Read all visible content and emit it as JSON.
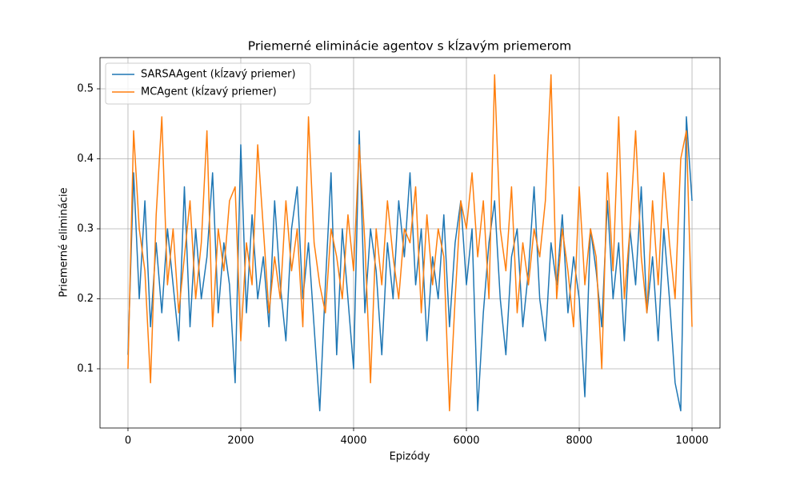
{
  "chart_data": {
    "type": "line",
    "title": "Priemerné eliminácie agentov s kĺzavým priemerom",
    "xlabel": "Epizódy",
    "ylabel": "Priemerné eliminácie",
    "x": [
      0,
      100,
      200,
      300,
      400,
      500,
      600,
      700,
      800,
      900,
      1000,
      1100,
      1200,
      1300,
      1400,
      1500,
      1600,
      1700,
      1800,
      1900,
      2000,
      2100,
      2200,
      2300,
      2400,
      2500,
      2600,
      2700,
      2800,
      2900,
      3000,
      3100,
      3200,
      3300,
      3400,
      3500,
      3600,
      3700,
      3800,
      3900,
      4000,
      4100,
      4200,
      4300,
      4400,
      4500,
      4600,
      4700,
      4800,
      4900,
      5000,
      5100,
      5200,
      5300,
      5400,
      5500,
      5600,
      5700,
      5800,
      5900,
      6000,
      6100,
      6200,
      6300,
      6400,
      6500,
      6600,
      6700,
      6800,
      6900,
      7000,
      7100,
      7200,
      7300,
      7400,
      7500,
      7600,
      7700,
      7800,
      7900,
      8000,
      8100,
      8200,
      8300,
      8400,
      8500,
      8600,
      8700,
      8800,
      8900,
      9000,
      9100,
      9200,
      9300,
      9400,
      9500,
      9600,
      9700,
      9800,
      9900,
      10000
    ],
    "series": [
      {
        "name": "SARSAAgent (kĺzavý priemer)",
        "color": "#1f77b4",
        "values": [
          0.12,
          0.38,
          0.2,
          0.34,
          0.16,
          0.28,
          0.18,
          0.3,
          0.22,
          0.14,
          0.36,
          0.16,
          0.3,
          0.2,
          0.26,
          0.38,
          0.18,
          0.28,
          0.22,
          0.08,
          0.42,
          0.18,
          0.32,
          0.2,
          0.26,
          0.16,
          0.34,
          0.22,
          0.14,
          0.3,
          0.36,
          0.2,
          0.28,
          0.16,
          0.04,
          0.22,
          0.38,
          0.12,
          0.3,
          0.2,
          0.1,
          0.44,
          0.18,
          0.3,
          0.24,
          0.12,
          0.28,
          0.2,
          0.34,
          0.26,
          0.38,
          0.22,
          0.3,
          0.14,
          0.26,
          0.2,
          0.32,
          0.16,
          0.28,
          0.34,
          0.22,
          0.3,
          0.04,
          0.18,
          0.28,
          0.34,
          0.2,
          0.12,
          0.26,
          0.3,
          0.16,
          0.24,
          0.36,
          0.2,
          0.14,
          0.28,
          0.22,
          0.32,
          0.18,
          0.26,
          0.2,
          0.06,
          0.3,
          0.24,
          0.16,
          0.34,
          0.2,
          0.28,
          0.14,
          0.3,
          0.22,
          0.36,
          0.18,
          0.26,
          0.14,
          0.3,
          0.2,
          0.08,
          0.04,
          0.46,
          0.34
        ]
      },
      {
        "name": "MCAgent (kĺzavý priemer)",
        "color": "#ff7f0e",
        "values": [
          0.1,
          0.44,
          0.3,
          0.24,
          0.08,
          0.32,
          0.46,
          0.22,
          0.3,
          0.18,
          0.26,
          0.34,
          0.2,
          0.28,
          0.44,
          0.16,
          0.3,
          0.24,
          0.34,
          0.36,
          0.14,
          0.28,
          0.22,
          0.42,
          0.3,
          0.18,
          0.26,
          0.2,
          0.34,
          0.24,
          0.3,
          0.16,
          0.46,
          0.28,
          0.22,
          0.18,
          0.3,
          0.26,
          0.2,
          0.32,
          0.24,
          0.42,
          0.28,
          0.08,
          0.3,
          0.22,
          0.34,
          0.26,
          0.2,
          0.3,
          0.28,
          0.36,
          0.18,
          0.32,
          0.22,
          0.3,
          0.26,
          0.04,
          0.2,
          0.34,
          0.3,
          0.38,
          0.26,
          0.34,
          0.2,
          0.52,
          0.3,
          0.24,
          0.36,
          0.18,
          0.28,
          0.22,
          0.3,
          0.26,
          0.34,
          0.52,
          0.2,
          0.3,
          0.24,
          0.16,
          0.36,
          0.22,
          0.3,
          0.26,
          0.1,
          0.38,
          0.24,
          0.46,
          0.2,
          0.3,
          0.44,
          0.26,
          0.18,
          0.34,
          0.22,
          0.38,
          0.28,
          0.2,
          0.4,
          0.44,
          0.16
        ]
      }
    ],
    "xlim": [
      -496,
      10496
    ],
    "ylim": [
      0.0154,
      0.5446
    ],
    "xticks": [
      0,
      2000,
      4000,
      6000,
      8000,
      10000
    ],
    "yticks": [
      0.1,
      0.2,
      0.3,
      0.4,
      0.5
    ],
    "grid": true,
    "legend": "upper-left"
  }
}
